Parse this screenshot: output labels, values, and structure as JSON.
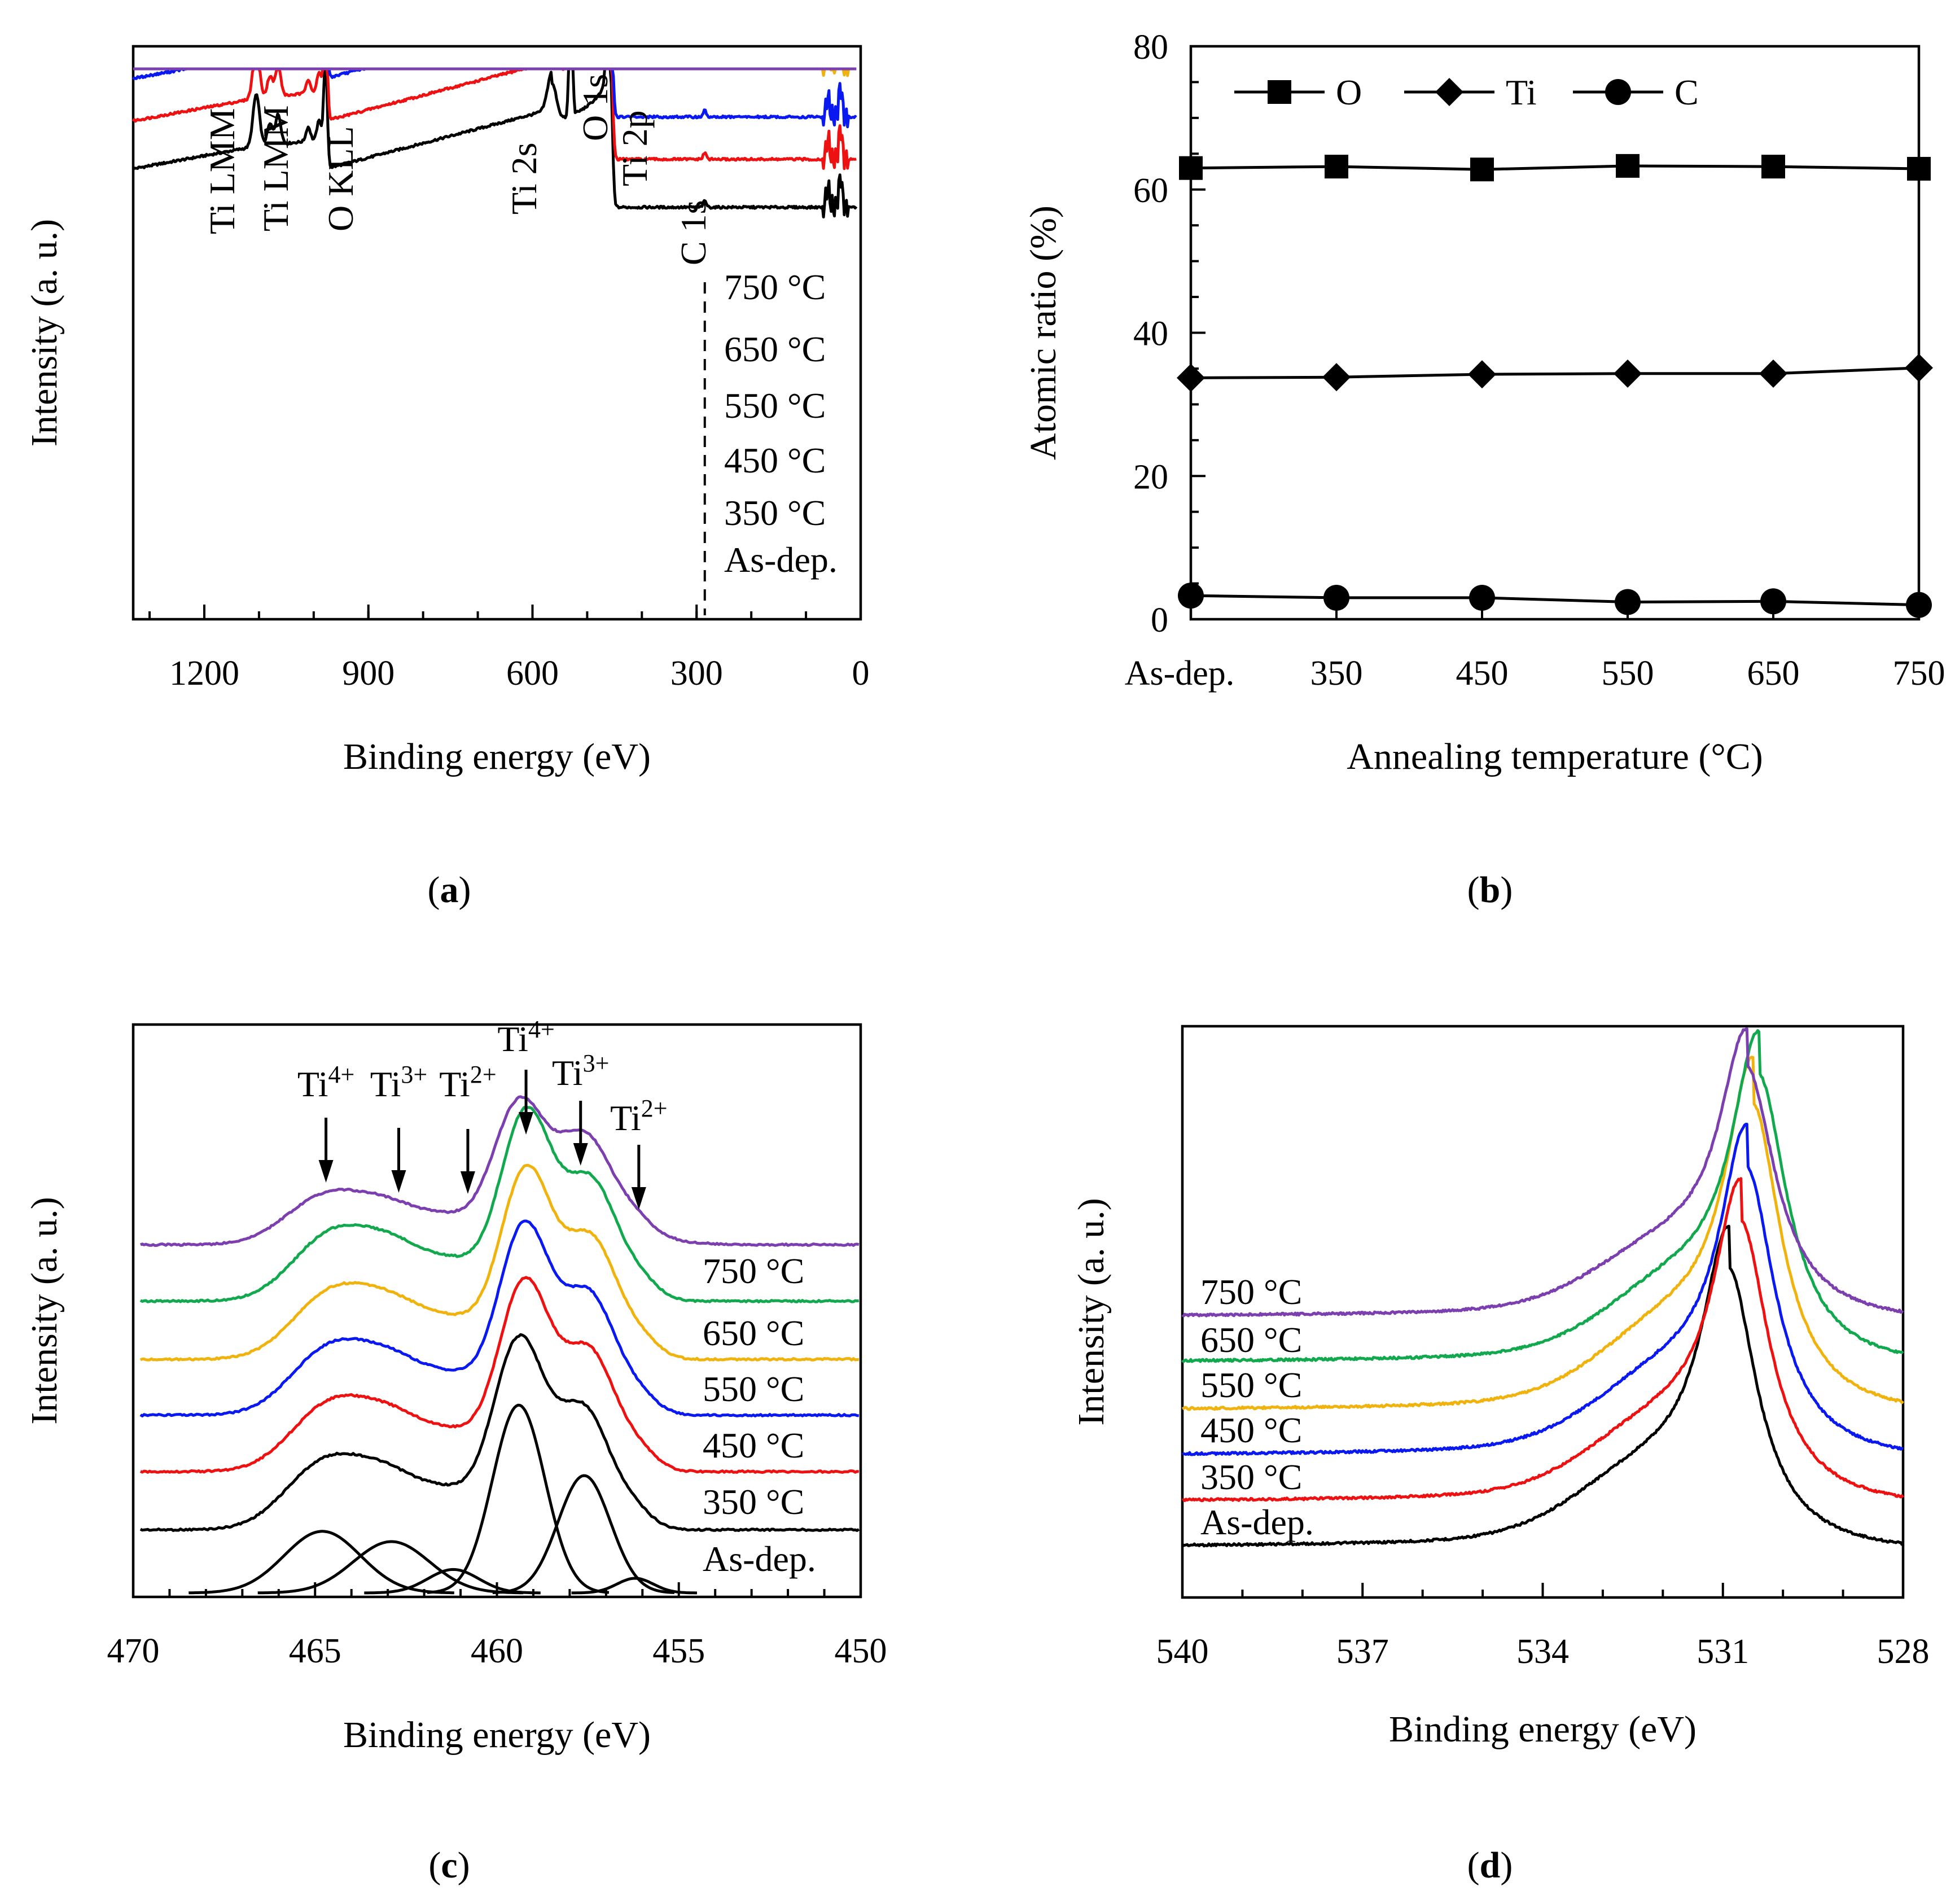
{
  "colors": {
    "As-dep.": "#000000",
    "350 °C": "#ee1111",
    "450 °C": "#0a19f0",
    "550 °C": "#f0b20c",
    "650 °C": "#12a84e",
    "750 °C": "#7b3fb0"
  },
  "chart_data": [
    {
      "id": "a",
      "type": "line",
      "caption": "a",
      "xlabel": "Binding energy (eV)",
      "ylabel": "Intensity (a. u.)",
      "xlim": [
        1330,
        0
      ],
      "xticks": [
        1200,
        900,
        600,
        300,
        0
      ],
      "x_reversed": true,
      "y_units": "arbitrary",
      "series": [
        {
          "name": "As-dep.",
          "label": "As-dep."
        },
        {
          "name": "350 °C",
          "label": "350 °C"
        },
        {
          "name": "450 °C",
          "label": "450 °C"
        },
        {
          "name": "550 °C",
          "label": "550 °C"
        },
        {
          "name": "650 °C",
          "label": "650 °C"
        },
        {
          "name": "750 °C",
          "label": "750 °C"
        }
      ],
      "peaks": [
        {
          "label": "Ti LMM",
          "energy": 1105
        },
        {
          "label": "Ti LMM",
          "energy": 1065
        },
        {
          "label": "O KLL",
          "energy": 978
        },
        {
          "label": "Ti 2s",
          "energy": 564
        },
        {
          "label": "O 1s",
          "energy": 531
        },
        {
          "label": "Ti 2p",
          "energy": 459
        },
        {
          "label": "C 1s",
          "energy": 285
        }
      ]
    },
    {
      "id": "b",
      "type": "line",
      "caption": "b",
      "xlabel": "Annealing temperature (°C)",
      "ylabel": "Atomic ratio (%)",
      "categories": [
        "As-dep.",
        "350",
        "450",
        "550",
        "650",
        "750"
      ],
      "ylim": [
        0,
        80
      ],
      "yticks": [
        0,
        20,
        40,
        60,
        80
      ],
      "legend_position": "top",
      "series": [
        {
          "name": "O",
          "marker": "square",
          "values": [
            63.0,
            63.2,
            62.8,
            63.3,
            63.2,
            62.9
          ]
        },
        {
          "name": "Ti",
          "marker": "diamond",
          "values": [
            33.7,
            33.8,
            34.2,
            34.3,
            34.3,
            35.1
          ]
        },
        {
          "name": "C",
          "marker": "circle",
          "values": [
            3.3,
            3.0,
            3.0,
            2.4,
            2.5,
            2.0
          ]
        }
      ]
    },
    {
      "id": "c",
      "type": "line",
      "caption": "c",
      "xlabel": "Binding energy (eV)",
      "ylabel": "Intensity (a. u.)",
      "xlim": [
        470,
        450
      ],
      "xticks": [
        470,
        465,
        460,
        455,
        450
      ],
      "x_reversed": true,
      "series": [
        {
          "name": "As-dep.",
          "label": "As-dep."
        },
        {
          "name": "350 °C",
          "label": "350 °C"
        },
        {
          "name": "450 °C",
          "label": "450 °C"
        },
        {
          "name": "550 °C",
          "label": "550 °C"
        },
        {
          "name": "650 °C",
          "label": "650 °C"
        },
        {
          "name": "750 °C",
          "label": "750 °C"
        }
      ],
      "fitted_components": [
        {
          "state": "Ti4+",
          "energy": 464.8,
          "height": 0.42,
          "sigma": 1.05
        },
        {
          "state": "Ti3+",
          "energy": 462.9,
          "height": 0.35,
          "sigma": 1.05
        },
        {
          "state": "Ti2+",
          "energy": 461.2,
          "height": 0.16,
          "sigma": 0.7
        },
        {
          "state": "Ti4+",
          "energy": 459.4,
          "height": 1.28,
          "sigma": 0.72
        },
        {
          "state": "Ti3+",
          "energy": 457.6,
          "height": 0.8,
          "sigma": 0.72
        },
        {
          "state": "Ti2+",
          "energy": 456.2,
          "height": 0.1,
          "sigma": 0.5
        }
      ],
      "arrow_labels": [
        {
          "base": "Ti",
          "sup": "4+",
          "energy": 464.7
        },
        {
          "base": "Ti",
          "sup": "3+",
          "energy": 462.7
        },
        {
          "base": "Ti",
          "sup": "2+",
          "energy": 460.8
        },
        {
          "base": "Ti",
          "sup": "4+",
          "energy": 459.2
        },
        {
          "base": "Ti",
          "sup": "3+",
          "energy": 457.7
        },
        {
          "base": "Ti",
          "sup": "2+",
          "energy": 456.1
        }
      ]
    },
    {
      "id": "d",
      "type": "line",
      "caption": "d",
      "xlabel": "Binding energy (eV)",
      "ylabel": "Intensity (a. u.)",
      "xlim": [
        540,
        528
      ],
      "xticks": [
        540,
        537,
        534,
        531,
        528
      ],
      "x_reversed": true,
      "series": [
        {
          "name": "As-dep.",
          "label": "As-dep.",
          "peak": 530.9
        },
        {
          "name": "350 °C",
          "label": "350 °C",
          "peak": 530.7
        },
        {
          "name": "450 °C",
          "label": "450 °C",
          "peak": 530.6
        },
        {
          "name": "550 °C",
          "label": "550 °C",
          "peak": 530.5
        },
        {
          "name": "650 °C",
          "label": "650 °C",
          "peak": 530.4
        },
        {
          "name": "750 °C",
          "label": "750 °C",
          "peak": 530.6
        }
      ]
    }
  ]
}
